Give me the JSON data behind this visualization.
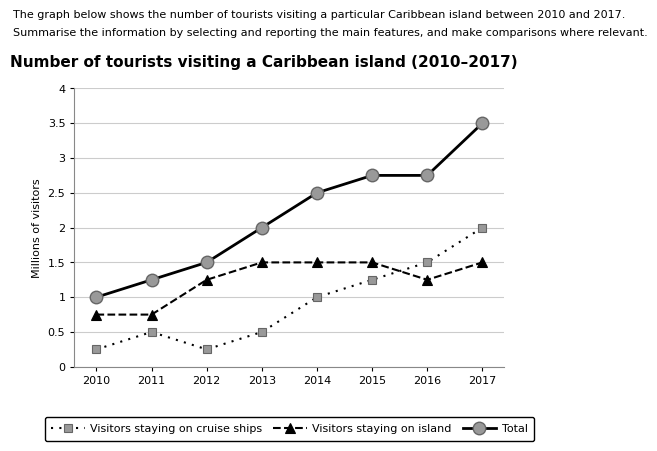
{
  "title": "Number of tourists visiting a Caribbean island (2010–2017)",
  "header_line1": "The graph below shows the number of tourists visiting a particular Caribbean island between 2010 and 2017.",
  "header_line2": "Summarise the information by selecting and reporting the main features, and make comparisons where relevant.",
  "ylabel": "Millions of visitors",
  "years": [
    2010,
    2011,
    2012,
    2013,
    2014,
    2015,
    2016,
    2017
  ],
  "cruise_ships": [
    0.25,
    0.5,
    0.25,
    0.5,
    1.0,
    1.25,
    1.5,
    2.0
  ],
  "on_island": [
    0.75,
    0.75,
    1.25,
    1.5,
    1.5,
    1.5,
    1.25,
    1.5
  ],
  "total": [
    1.0,
    1.25,
    1.5,
    2.0,
    2.5,
    2.75,
    2.75,
    3.5
  ],
  "ylim": [
    0,
    4
  ],
  "yticks": [
    0,
    0.5,
    1.0,
    1.5,
    2.0,
    2.5,
    3.0,
    3.5,
    4.0
  ],
  "legend_cruise_label": "Visitors staying on cruise ships",
  "legend_island_label": "Visitors staying on island",
  "legend_total_label": "Total",
  "title_fontsize": 11,
  "header_fontsize": 8,
  "axis_fontsize": 8,
  "legend_fontsize": 8,
  "ylabel_fontsize": 8,
  "marker_gray": "#999999",
  "marker_darkgray": "#666666"
}
